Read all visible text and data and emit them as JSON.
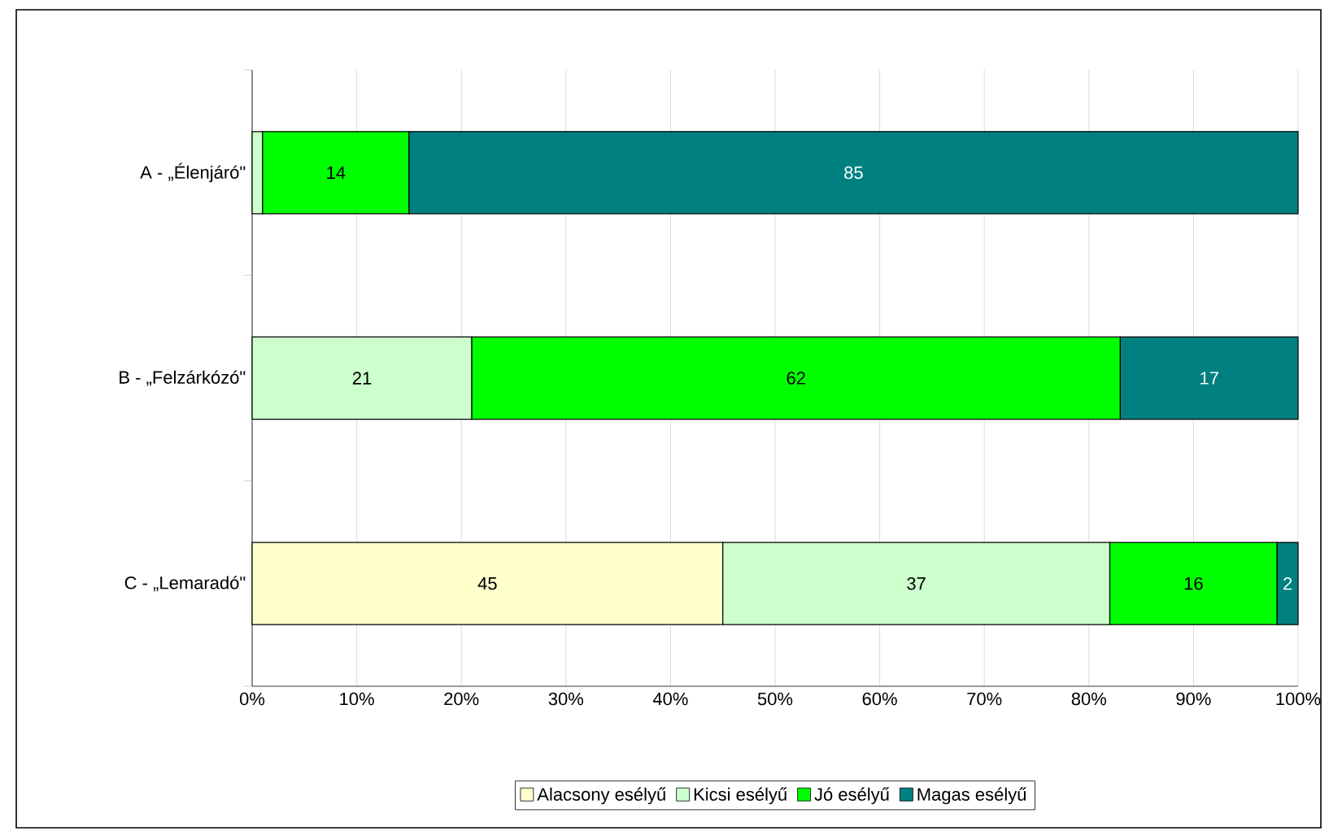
{
  "chart_data": {
    "type": "bar",
    "orientation": "horizontal",
    "stacked": true,
    "categories": [
      "A - „Élenjáró\"",
      "B - „Felzárkózó\"",
      "C - „Lemaradó\""
    ],
    "series": [
      {
        "name": "Alacsony esélyű",
        "color": "#ffffcc",
        "values": [
          null,
          null,
          45
        ],
        "value_labels": [
          null,
          null,
          "45"
        ]
      },
      {
        "name": "Kicsi esélyű",
        "color": "#ccffcc",
        "values": [
          1,
          21,
          37
        ],
        "value_labels": [
          null,
          "21",
          "37"
        ]
      },
      {
        "name": "Jó esélyű",
        "color": "#00ff00",
        "values": [
          14,
          62,
          16
        ],
        "value_labels": [
          "14",
          "62",
          "16"
        ]
      },
      {
        "name": "Magas esélyű",
        "color": "#008080",
        "values": [
          85,
          17,
          2
        ],
        "value_labels": [
          "85",
          "17",
          "2"
        ]
      }
    ],
    "xlim": [
      0,
      100
    ],
    "xticks": [
      {
        "value": 0,
        "label": "0%"
      },
      {
        "value": 10,
        "label": "10%"
      },
      {
        "value": 20,
        "label": "20%"
      },
      {
        "value": 30,
        "label": "30%"
      },
      {
        "value": 40,
        "label": "40%"
      },
      {
        "value": 50,
        "label": "50%"
      },
      {
        "value": 60,
        "label": "60%"
      },
      {
        "value": 70,
        "label": "70%"
      },
      {
        "value": 80,
        "label": "80%"
      },
      {
        "value": 90,
        "label": "90%"
      },
      {
        "value": 100,
        "label": "100%"
      }
    ],
    "grid": "x",
    "legend": "bottom"
  }
}
